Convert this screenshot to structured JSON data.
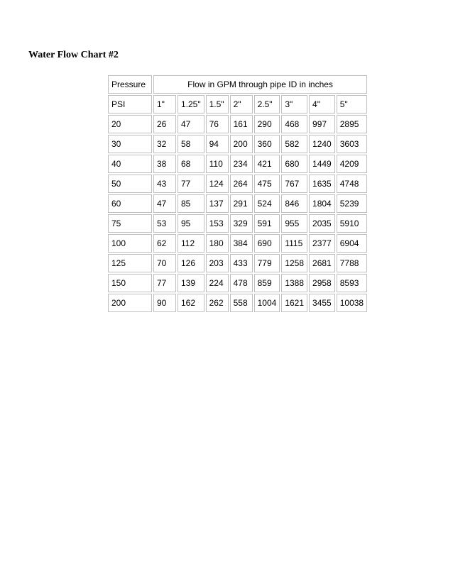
{
  "title": "Water Flow Chart #2",
  "table": {
    "type": "table",
    "header_row1": {
      "pressure_label": "Pressure",
      "flow_span_label": "Flow in GPM through pipe ID in inches"
    },
    "header_row2": [
      "PSI",
      "1\"",
      "1.25\"",
      "1.5\"",
      "2\"",
      "2.5\"",
      "3\"",
      "4\"",
      "5\""
    ],
    "rows": [
      [
        "20",
        "26",
        "47",
        "76",
        "161",
        "290",
        "468",
        "997",
        "2895"
      ],
      [
        "30",
        "32",
        "58",
        "94",
        "200",
        "360",
        "582",
        "1240",
        "3603"
      ],
      [
        "40",
        "38",
        "68",
        "110",
        "234",
        "421",
        "680",
        "1449",
        "4209"
      ],
      [
        "50",
        "43",
        "77",
        "124",
        "264",
        "475",
        "767",
        "1635",
        "4748"
      ],
      [
        "60",
        "47",
        "85",
        "137",
        "291",
        "524",
        "846",
        "1804",
        "5239"
      ],
      [
        "75",
        "53",
        "95",
        "153",
        "329",
        "591",
        "955",
        "2035",
        "5910"
      ],
      [
        "100",
        "62",
        "112",
        "180",
        "384",
        "690",
        "1115",
        "2377",
        "6904"
      ],
      [
        "125",
        "70",
        "126",
        "203",
        "433",
        "779",
        "1258",
        "2681",
        "7788"
      ],
      [
        "150",
        "77",
        "139",
        "224",
        "478",
        "859",
        "1388",
        "2958",
        "8593"
      ],
      [
        "200",
        "90",
        "162",
        "262",
        "558",
        "1004",
        "1621",
        "3455",
        "10038"
      ]
    ],
    "border_color": "#bfbfbf",
    "background_color": "#ffffff",
    "text_color": "#000000",
    "header_fontsize": 12,
    "cell_fontsize": 12
  }
}
